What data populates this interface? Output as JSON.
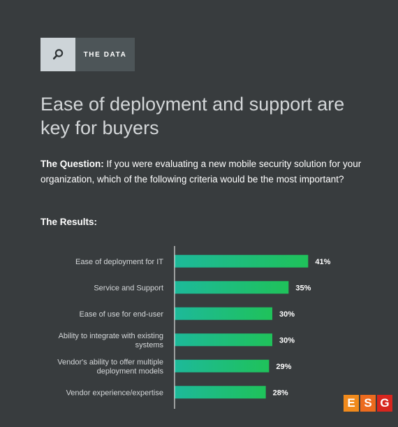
{
  "badge": {
    "label": "THE DATA",
    "icon": "search-icon"
  },
  "headline": "Ease of deployment and support are key for buyers",
  "question": {
    "lead": "The Question:",
    "text": "If you were evaluating a new mobile security solution for your organization, which of the following criteria would be the most important?"
  },
  "results_label": "The Results:",
  "chart_data": {
    "type": "bar",
    "orientation": "horizontal",
    "categories": [
      [
        "Ease of deployment for IT"
      ],
      [
        "Service and Support"
      ],
      [
        "Ease of use for end-user"
      ],
      [
        "Ability to integrate with existing",
        "systems"
      ],
      [
        "Vendor's ability to offer multiple",
        "deployment models"
      ],
      [
        "Vendor experience/expertise"
      ]
    ],
    "values": [
      41,
      35,
      30,
      30,
      29,
      28
    ],
    "value_labels": [
      "41%",
      "35%",
      "30%",
      "30%",
      "29%",
      "28%"
    ],
    "xlim": [
      0,
      60
    ],
    "title": "",
    "xlabel": "",
    "ylabel": "",
    "grid": false,
    "bar_gradient": [
      "#1db99a",
      "#1fc25a"
    ]
  },
  "logo": {
    "letters": [
      "E",
      "S",
      "G"
    ],
    "colors": [
      "#f08a1c",
      "#ec6b1e",
      "#d7261e"
    ]
  }
}
